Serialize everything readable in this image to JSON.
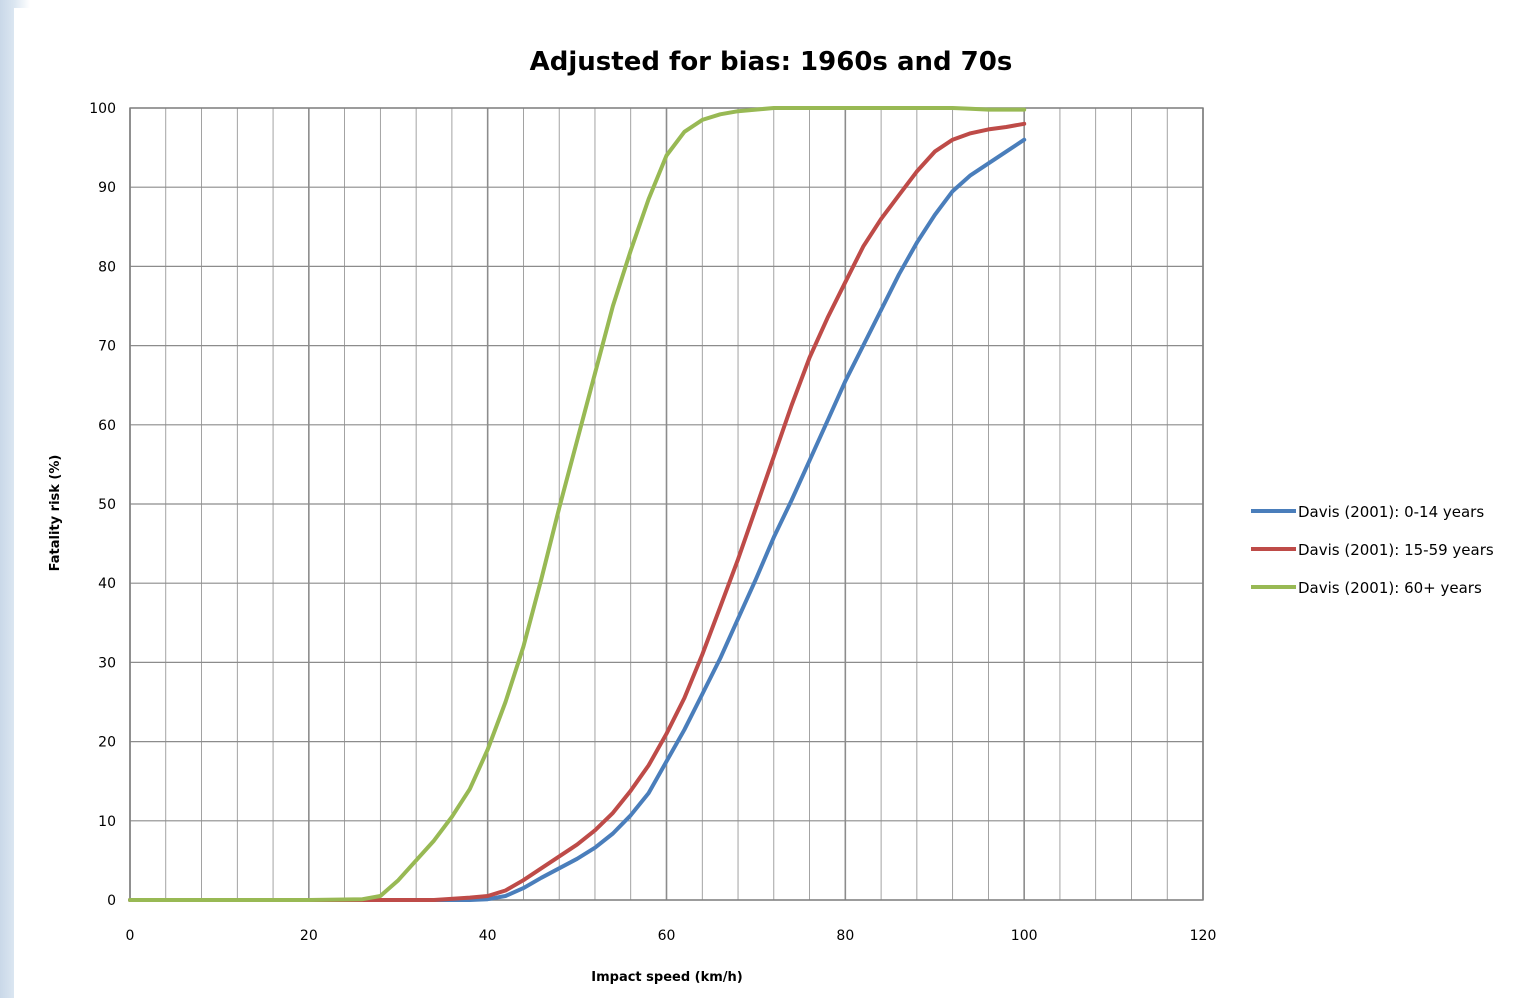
{
  "colors": {
    "blue": "#4a7ebb",
    "red": "#be4b48",
    "green": "#98b954",
    "grid": "#8c8c8c"
  },
  "chart_data": {
    "type": "line",
    "title": "Adjusted for bias: 1960s and 70s",
    "xlabel": "Impact speed (km/h)",
    "ylabel": "Fatality risk (%)",
    "xlim": [
      0,
      120
    ],
    "ylim": [
      0,
      100
    ],
    "xticks": [
      "0",
      "20",
      "40",
      "60",
      "80",
      "100",
      "120"
    ],
    "yticks": [
      "0",
      "10",
      "20",
      "30",
      "40",
      "50",
      "60",
      "70",
      "80",
      "90",
      "100"
    ],
    "grid": true,
    "legend_position": "right",
    "series": [
      {
        "name": "Davis (2001): 0-14 years",
        "color": "blue",
        "x": [
          0,
          20,
          38,
          40,
          42,
          44,
          46,
          48,
          50,
          52,
          54,
          56,
          58,
          60,
          62,
          64,
          66,
          68,
          70,
          72,
          74,
          76,
          78,
          80,
          82,
          84,
          86,
          88,
          90,
          92,
          94,
          96,
          98,
          100
        ],
        "y": [
          0,
          0,
          0,
          0.1,
          0.5,
          1.5,
          2.8,
          4.0,
          5.2,
          6.6,
          8.4,
          10.7,
          13.5,
          17.5,
          21.5,
          26.0,
          30.5,
          35.5,
          40.5,
          45.8,
          50.5,
          55.5,
          60.5,
          65.5,
          70.0,
          74.5,
          79.0,
          83.0,
          86.5,
          89.5,
          91.5,
          93.0,
          94.5,
          96.0
        ]
      },
      {
        "name": "Davis (2001): 15-59 years",
        "color": "red",
        "x": [
          0,
          20,
          30,
          34,
          38,
          40,
          42,
          44,
          46,
          48,
          50,
          52,
          54,
          56,
          58,
          60,
          62,
          64,
          66,
          68,
          70,
          72,
          74,
          76,
          78,
          80,
          82,
          84,
          86,
          88,
          90,
          92,
          94,
          96,
          98,
          100
        ],
        "y": [
          0,
          0,
          0,
          0,
          0.3,
          0.5,
          1.2,
          2.5,
          4.0,
          5.5,
          7.0,
          8.8,
          11.0,
          13.8,
          17.0,
          21.0,
          25.5,
          31.0,
          37.0,
          43.0,
          49.5,
          56.0,
          62.5,
          68.5,
          73.5,
          78.0,
          82.5,
          86.0,
          89.0,
          92.0,
          94.5,
          96.0,
          96.8,
          97.3,
          97.6,
          98.0
        ]
      },
      {
        "name": "Davis (2001): 60+ years",
        "color": "green",
        "x": [
          0,
          20,
          26,
          28,
          30,
          32,
          34,
          36,
          38,
          40,
          42,
          44,
          46,
          48,
          50,
          52,
          54,
          56,
          58,
          60,
          62,
          64,
          66,
          68,
          70,
          72,
          74,
          76,
          78,
          80,
          84,
          88,
          90,
          92,
          94,
          96,
          98,
          100
        ],
        "y": [
          0,
          0,
          0.1,
          0.5,
          2.5,
          5.0,
          7.5,
          10.5,
          14.0,
          19.0,
          25.0,
          32.0,
          40.5,
          49.5,
          58.0,
          66.5,
          75.0,
          82.0,
          88.5,
          94.0,
          97.0,
          98.5,
          99.2,
          99.6,
          99.8,
          100,
          100,
          100,
          100,
          100,
          100,
          100,
          100,
          100,
          99.9,
          99.8,
          99.8,
          99.8
        ]
      }
    ]
  },
  "legend": {
    "items": [
      "Davis (2001): 0-14 years",
      "Davis (2001): 15-59 years",
      "Davis (2001): 60+ years"
    ]
  }
}
